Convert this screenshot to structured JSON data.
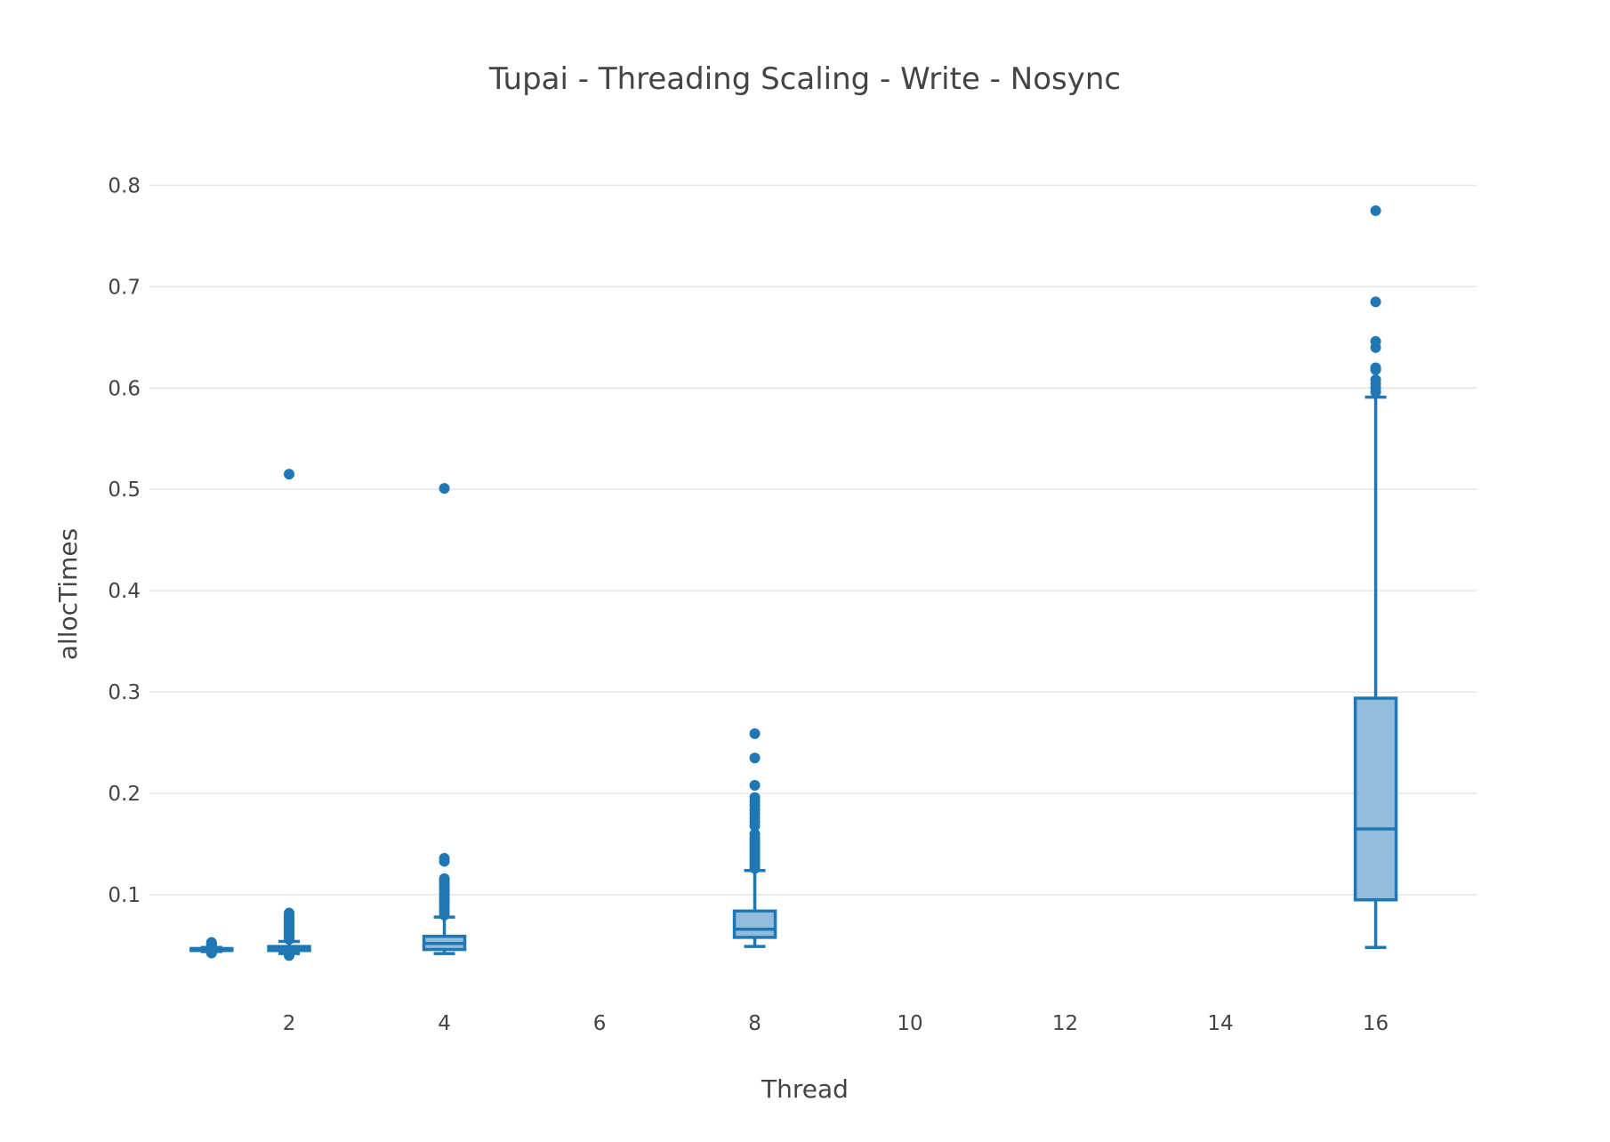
{
  "chart_data": {
    "type": "box",
    "title": "Tupai  - Threading Scaling - Write - Nosync",
    "xlabel": "Thread",
    "ylabel": "allocTimes",
    "xlim": [
      0.2,
      17.3
    ],
    "ylim": [
      0.0,
      0.86
    ],
    "x_ticks": [
      2,
      4,
      6,
      8,
      10,
      12,
      14,
      16
    ],
    "y_ticks": [
      0.1,
      0.2,
      0.3,
      0.4,
      0.5,
      0.6,
      0.7,
      0.8
    ],
    "x_tick_labels": [
      "2",
      "4",
      "6",
      "8",
      "10",
      "12",
      "14",
      "16"
    ],
    "y_tick_labels": [
      "0.1",
      "0.2",
      "0.3",
      "0.4",
      "0.5",
      "0.6",
      "0.7",
      "0.8"
    ],
    "grid": "horizontal",
    "color": "#1f77b4",
    "fill_color": "#93bcdc",
    "boxes": [
      {
        "x": 1,
        "min": 0.044,
        "q1": 0.045,
        "median": 0.046,
        "q3": 0.047,
        "max": 0.048,
        "outliers": [
          0.0425,
          0.043,
          0.0435,
          0.049,
          0.05,
          0.051,
          0.052,
          0.053
        ]
      },
      {
        "x": 2,
        "min": 0.042,
        "q1": 0.045,
        "median": 0.047,
        "q3": 0.049,
        "max": 0.054,
        "outliers": [
          0.04,
          0.041,
          0.056,
          0.058,
          0.06,
          0.062,
          0.064,
          0.066,
          0.068,
          0.07,
          0.072,
          0.074,
          0.076,
          0.078,
          0.08,
          0.082,
          0.515
        ]
      },
      {
        "x": 4,
        "min": 0.042,
        "q1": 0.046,
        "median": 0.052,
        "q3": 0.059,
        "max": 0.078,
        "outliers": [
          0.08,
          0.083,
          0.086,
          0.089,
          0.092,
          0.095,
          0.098,
          0.101,
          0.104,
          0.107,
          0.11,
          0.113,
          0.116,
          0.133,
          0.136,
          0.501
        ]
      },
      {
        "x": 8,
        "min": 0.049,
        "q1": 0.058,
        "median": 0.066,
        "q3": 0.084,
        "max": 0.124,
        "outliers": [
          0.126,
          0.129,
          0.132,
          0.135,
          0.138,
          0.141,
          0.144,
          0.147,
          0.15,
          0.153,
          0.156,
          0.16,
          0.168,
          0.172,
          0.176,
          0.18,
          0.184,
          0.188,
          0.192,
          0.196,
          0.208,
          0.235,
          0.259
        ]
      },
      {
        "x": 16,
        "min": 0.048,
        "q1": 0.095,
        "median": 0.165,
        "q3": 0.294,
        "max": 0.591,
        "outliers": [
          0.596,
          0.6,
          0.604,
          0.608,
          0.618,
          0.62,
          0.64,
          0.646,
          0.685,
          0.775
        ]
      }
    ]
  }
}
